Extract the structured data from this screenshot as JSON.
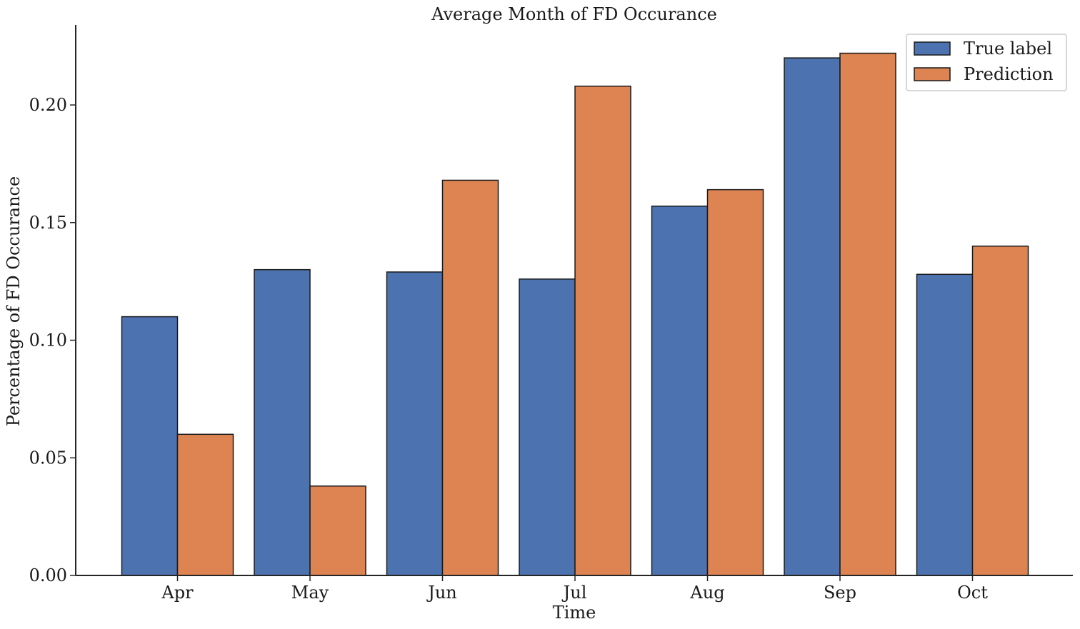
{
  "chart_data": {
    "type": "bar",
    "title": "Average Month of FD Occurance",
    "xlabel": "Time",
    "ylabel": "Percentage of FD Occurance",
    "categories": [
      "Apr",
      "May",
      "Jun",
      "Jul",
      "Aug",
      "Sep",
      "Oct"
    ],
    "series": [
      {
        "name": "True label",
        "color": "#4c72b0",
        "values": [
          0.11,
          0.13,
          0.129,
          0.126,
          0.157,
          0.22,
          0.128
        ]
      },
      {
        "name": "Prediction",
        "color": "#dd8452",
        "values": [
          0.06,
          0.038,
          0.168,
          0.208,
          0.164,
          0.222,
          0.14
        ]
      }
    ],
    "ylim": [
      0,
      0.234
    ],
    "yticks": [
      0.0,
      0.05,
      0.1,
      0.15,
      0.2
    ],
    "ytick_labels": [
      "0.00",
      "0.05",
      "0.10",
      "0.15",
      "0.20"
    ],
    "grid": false,
    "legend": "top-right"
  }
}
